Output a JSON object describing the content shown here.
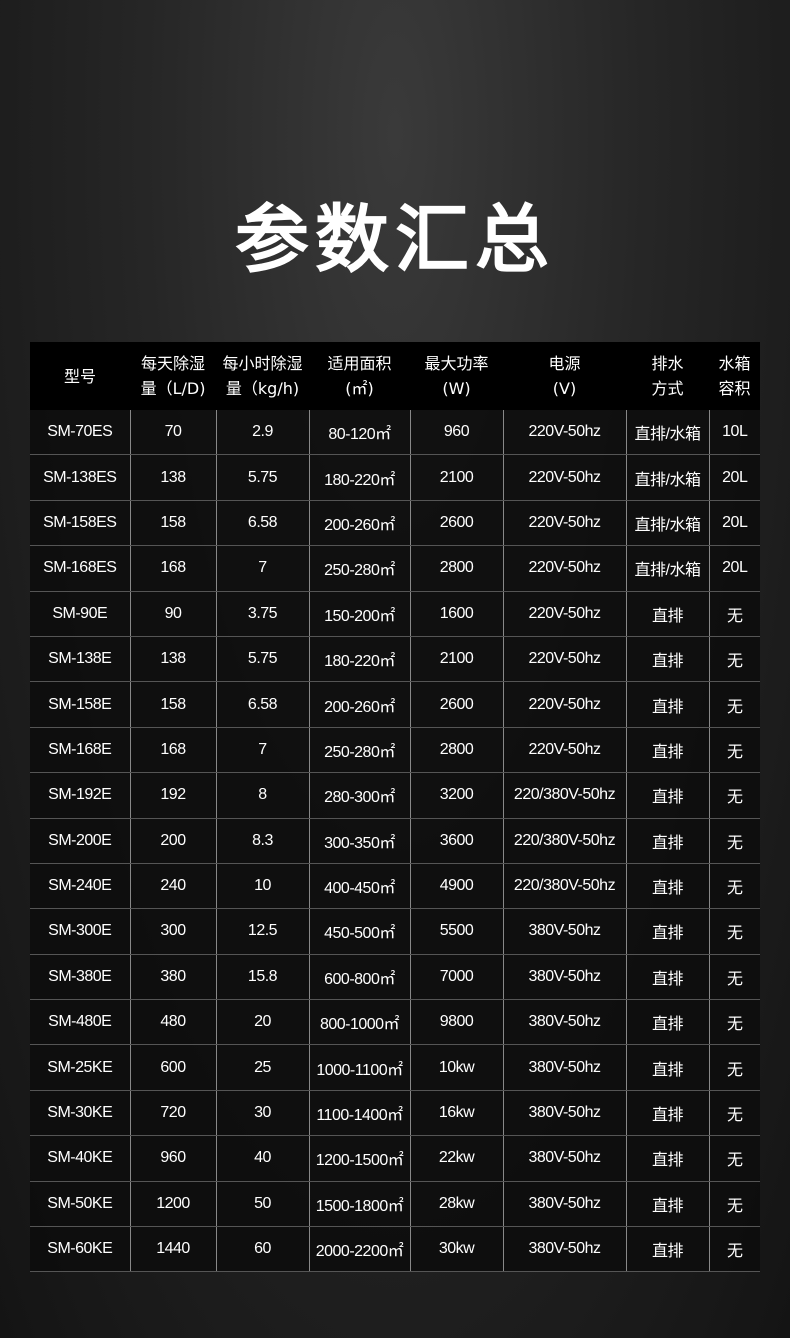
{
  "title": "参数汇总",
  "headers": [
    [
      "型号",
      ""
    ],
    [
      "每天除湿",
      "量（L/D)"
    ],
    [
      "每小时除湿",
      "量（kg/h)"
    ],
    [
      "适用面积",
      "(㎡)"
    ],
    [
      "最大功率",
      "(W)"
    ],
    [
      "电源",
      "(V)"
    ],
    [
      "排水",
      "方式"
    ],
    [
      "水箱",
      "容积"
    ]
  ],
  "rows": [
    [
      "SM-70ES",
      "70",
      "2.9",
      "80-120㎡",
      "960",
      "220V-50hz",
      "直排/水箱",
      "10L"
    ],
    [
      "SM-138ES",
      "138",
      "5.75",
      "180-220㎡",
      "2100",
      "220V-50hz",
      "直排/水箱",
      "20L"
    ],
    [
      "SM-158ES",
      "158",
      "6.58",
      "200-260㎡",
      "2600",
      "220V-50hz",
      "直排/水箱",
      "20L"
    ],
    [
      "SM-168ES",
      "168",
      "7",
      "250-280㎡",
      "2800",
      "220V-50hz",
      "直排/水箱",
      "20L"
    ],
    [
      "SM-90E",
      "90",
      "3.75",
      "150-200㎡",
      "1600",
      "220V-50hz",
      "直排",
      "无"
    ],
    [
      "SM-138E",
      "138",
      "5.75",
      "180-220㎡",
      "2100",
      "220V-50hz",
      "直排",
      "无"
    ],
    [
      "SM-158E",
      "158",
      "6.58",
      "200-260㎡",
      "2600",
      "220V-50hz",
      "直排",
      "无"
    ],
    [
      "SM-168E",
      "168",
      "7",
      "250-280㎡",
      "2800",
      "220V-50hz",
      "直排",
      "无"
    ],
    [
      "SM-192E",
      "192",
      "8",
      "280-300㎡",
      "3200",
      "220/380V-50hz",
      "直排",
      "无"
    ],
    [
      "SM-200E",
      "200",
      "8.3",
      "300-350㎡",
      "3600",
      "220/380V-50hz",
      "直排",
      "无"
    ],
    [
      "SM-240E",
      "240",
      "10",
      "400-450㎡",
      "4900",
      "220/380V-50hz",
      "直排",
      "无"
    ],
    [
      "SM-300E",
      "300",
      "12.5",
      "450-500㎡",
      "5500",
      "380V-50hz",
      "直排",
      "无"
    ],
    [
      "SM-380E",
      "380",
      "15.8",
      "600-800㎡",
      "7000",
      "380V-50hz",
      "直排",
      "无"
    ],
    [
      "SM-480E",
      "480",
      "20",
      "800-1000㎡",
      "9800",
      "380V-50hz",
      "直排",
      "无"
    ],
    [
      "SM-25KE",
      "600",
      "25",
      "1000-1100㎡",
      "10kw",
      "380V-50hz",
      "直排",
      "无"
    ],
    [
      "SM-30KE",
      "720",
      "30",
      "1100-1400㎡",
      "16kw",
      "380V-50hz",
      "直排",
      "无"
    ],
    [
      "SM-40KE",
      "960",
      "40",
      "1200-1500㎡",
      "22kw",
      "380V-50hz",
      "直排",
      "无"
    ],
    [
      "SM-50KE",
      "1200",
      "50",
      "1500-1800㎡",
      "28kw",
      "380V-50hz",
      "直排",
      "无"
    ],
    [
      "SM-60KE",
      "1440",
      "60",
      "2000-2200㎡",
      "30kw",
      "380V-50hz",
      "直排",
      "无"
    ]
  ]
}
